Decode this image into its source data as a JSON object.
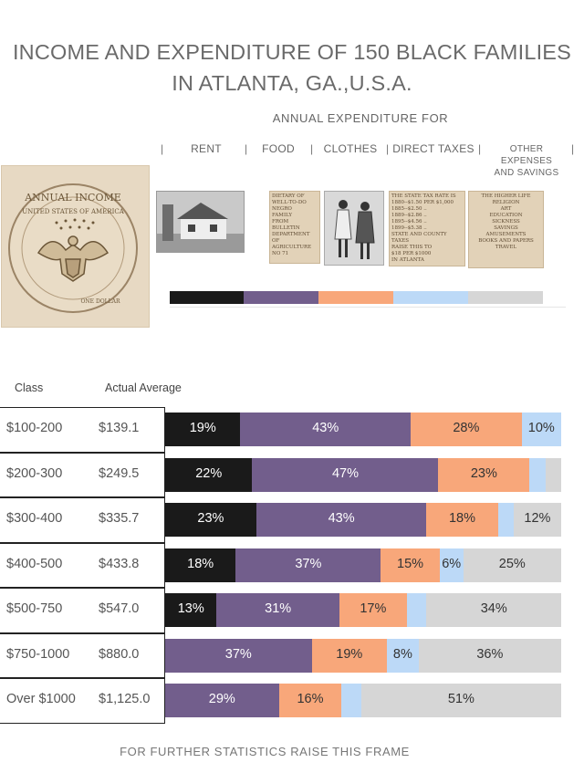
{
  "title_line1": "INCOME AND EXPENDITURE OF 150 BLACK FAMILIES",
  "title_line2": "IN ATLANTA, GA.,U.S.A.",
  "subtitle": "ANNUAL EXPENDITURE FOR",
  "columns": [
    "RENT",
    "FOOD",
    "CLOTHES",
    "DIRECT TAXES"
  ],
  "column_other_line1": "OTHER EXPENSES",
  "column_other_line2": "AND SAVINGS",
  "coin": {
    "text_top": "ANNUAL INCOME",
    "text_arc": "UNITED STATES OF AMERICA",
    "text_bottom": "ONE DOLLAR"
  },
  "thumbs": {
    "food_doc": [
      "DIETARY OF",
      "WELL-TO-DO",
      "NEGRO",
      "FAMILY",
      "FROM",
      "BULLETIN",
      "DEPARTMENT",
      "OF",
      "AGRICULTURE",
      "NO 71"
    ],
    "taxes_doc": [
      "THE STATE TAX RATE IS",
      "1880--$1.50 PER $1,000",
      "1885--$2.50 ..",
      "1889--$2.86 ..",
      "1895--$4.56 ..",
      "1899--$5.38 ..",
      "STATE AND COUNTY TAXES",
      "RAISE THIS TO",
      "$18 PER $1000",
      "IN ATLANTA"
    ],
    "other_doc": [
      "THE HIGHER LIFE",
      "RELIGION",
      "ART",
      "EDUCATION",
      "SICKNESS",
      "SAVINGS",
      "AMUSEMENTS",
      "BOOKS AND PAPERS",
      "TRAVEL"
    ]
  },
  "colors": {
    "rent": "#1a1a1a",
    "food": "#725e8c",
    "clothes": "#f8a77a",
    "taxes": "#bcd9f7",
    "other": "#d6d6d6"
  },
  "headers": {
    "class": "Class",
    "average": "Actual Average"
  },
  "footer": "FOR FURTHER STATISTICS RAISE THIS FRAME",
  "chart_data": {
    "type": "bar",
    "orientation": "horizontal",
    "stacked": true,
    "normalized_percent": true,
    "categories": [
      "$100-200",
      "$200-300",
      "$300-400",
      "$400-500",
      "$500-750",
      "$750-1000",
      "Over $1000"
    ],
    "actual_average": [
      "$139.1",
      "$249.5",
      "$335.7",
      "$433.8",
      "$547.0",
      "$880.0",
      "$1,125.0"
    ],
    "series": [
      {
        "name": "RENT",
        "values": [
          19,
          22,
          23,
          18,
          13,
          0,
          0
        ]
      },
      {
        "name": "FOOD",
        "values": [
          43,
          47,
          43,
          37,
          31,
          37,
          29
        ]
      },
      {
        "name": "CLOTHES",
        "values": [
          28,
          23,
          18,
          15,
          17,
          19,
          16
        ]
      },
      {
        "name": "DIRECT TAXES",
        "values": [
          10,
          4,
          4,
          6,
          5,
          8,
          5
        ]
      },
      {
        "name": "OTHER EXPENSES AND SAVINGS",
        "values": [
          0,
          4,
          12,
          25,
          34,
          36,
          51
        ]
      }
    ],
    "labels": [
      [
        "19%",
        "43%",
        "28%",
        "10%",
        ""
      ],
      [
        "22%",
        "47%",
        "23%",
        "",
        ""
      ],
      [
        "23%",
        "43%",
        "18%",
        "",
        "12%"
      ],
      [
        "18%",
        "37%",
        "15%",
        "6%",
        "25%"
      ],
      [
        "13%",
        "31%",
        "17%",
        "",
        "34%"
      ],
      [
        "",
        "37%",
        "19%",
        "8%",
        "36%"
      ],
      [
        "",
        "29%",
        "16%",
        "",
        "51%"
      ]
    ]
  }
}
